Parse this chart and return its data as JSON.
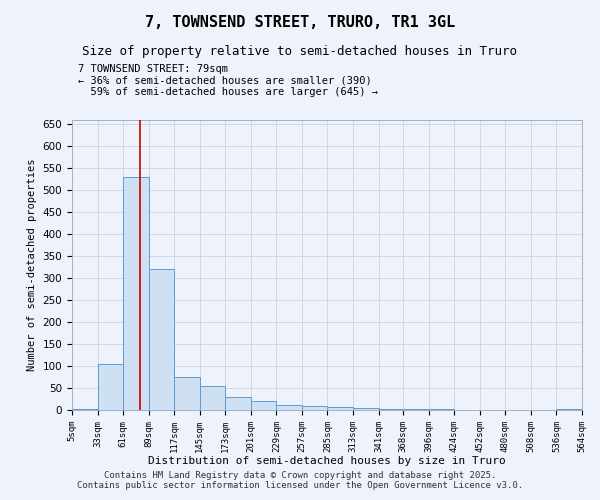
{
  "title": "7, TOWNSEND STREET, TRURO, TR1 3GL",
  "subtitle": "Size of property relative to semi-detached houses in Truro",
  "xlabel": "Distribution of semi-detached houses by size in Truro",
  "ylabel": "Number of semi-detached properties",
  "bar_color": "#cfe0f2",
  "bar_edge_color": "#5b9bd5",
  "bar_edge_width": 0.7,
  "grid_color": "#c8d4e8",
  "bg_color": "#eef2fa",
  "bin_edges": [
    5,
    33,
    61,
    89,
    117,
    145,
    173,
    201,
    229,
    257,
    285,
    313,
    341,
    368,
    396,
    424,
    452,
    480,
    508,
    536,
    564
  ],
  "bin_labels": [
    "5sqm",
    "33sqm",
    "61sqm",
    "89sqm",
    "117sqm",
    "145sqm",
    "173sqm",
    "201sqm",
    "229sqm",
    "257sqm",
    "285sqm",
    "313sqm",
    "341sqm",
    "368sqm",
    "396sqm",
    "424sqm",
    "452sqm",
    "480sqm",
    "508sqm",
    "536sqm",
    "564sqm"
  ],
  "bar_heights": [
    3,
    105,
    530,
    320,
    75,
    55,
    30,
    20,
    12,
    10,
    6,
    5,
    3,
    2,
    2,
    1,
    1,
    1,
    1,
    2,
    1
  ],
  "ylim": [
    0,
    660
  ],
  "yticks": [
    0,
    50,
    100,
    150,
    200,
    250,
    300,
    350,
    400,
    450,
    500,
    550,
    600,
    650
  ],
  "property_size": 79,
  "red_line_color": "#cc0000",
  "annotation_text": "7 TOWNSEND STREET: 79sqm\n← 36% of semi-detached houses are smaller (390)\n  59% of semi-detached houses are larger (645) →",
  "footer_line1": "Contains HM Land Registry data © Crown copyright and database right 2025.",
  "footer_line2": "Contains public sector information licensed under the Open Government Licence v3.0.",
  "title_fontsize": 11,
  "subtitle_fontsize": 9,
  "annotation_fontsize": 7.5,
  "ylabel_fontsize": 7.5,
  "xlabel_fontsize": 8,
  "footer_fontsize": 6.5
}
